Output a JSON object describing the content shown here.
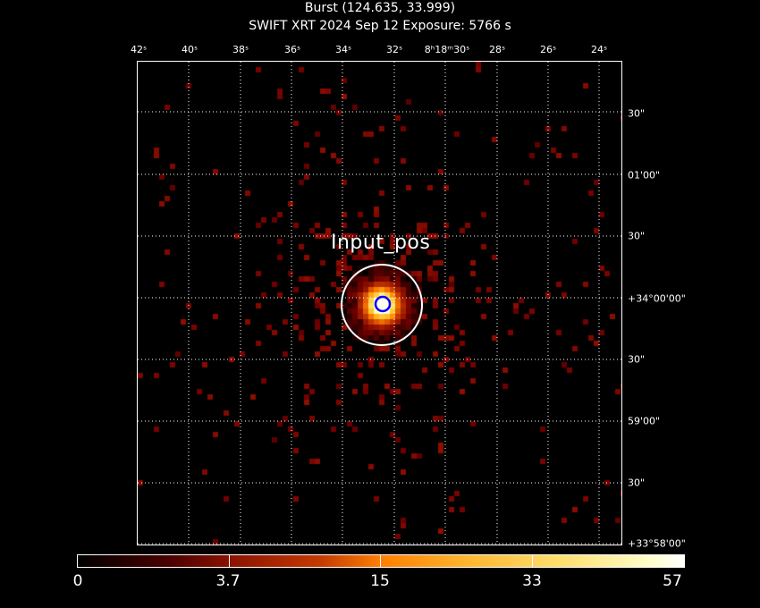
{
  "header": {
    "title_line1": "Burst (124.635, 33.999)",
    "title_line2": "SWIFT XRT   2024 Sep 12    Exposure: 5766 s"
  },
  "axes": {
    "ra_labels": [
      "42ˢ",
      "40ˢ",
      "38ˢ",
      "36ˢ",
      "34ˢ",
      "32ˢ",
      "8ʰ18ᵐ30ˢ",
      "28ˢ",
      "26ˢ",
      "24ˢ"
    ],
    "dec_labels": [
      "30\"",
      "01'00\"",
      "30\"",
      "+34°00'00\"",
      "30\"",
      "59'00\"",
      "30\"",
      "+33°58'00\""
    ]
  },
  "annotation": {
    "label": "Input_pos",
    "circle_color": "#ffffff",
    "marker_color": "#0000ff"
  },
  "colorbar": {
    "labels": [
      "0",
      "3.7",
      "15",
      "33",
      "57"
    ],
    "min": 0,
    "max": 57
  },
  "colors": {
    "background": "#000000",
    "grid": "#ffffff"
  }
}
